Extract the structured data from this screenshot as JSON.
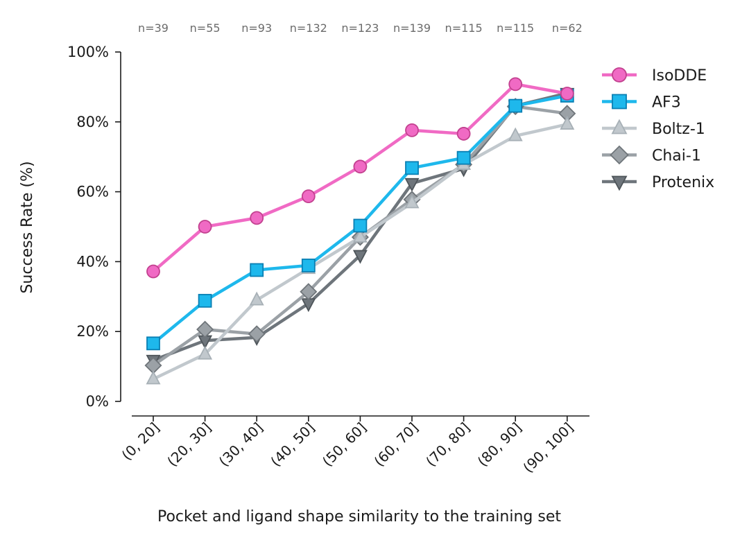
{
  "chart_data": {
    "type": "line",
    "title": "",
    "xlabel": "Pocket and ligand shape similarity to the training set",
    "ylabel": "Success Rate (%)",
    "categories": [
      "(0, 20]",
      "(20, 30]",
      "(30, 40]",
      "(40, 50]",
      "(50, 60]",
      "(60, 70]",
      "(70, 80]",
      "(80, 90]",
      "(90, 100]"
    ],
    "counts": [
      "n=39",
      "n=55",
      "n=93",
      "n=132",
      "n=123",
      "n=139",
      "n=115",
      "n=115",
      "n=62"
    ],
    "ylim": [
      0,
      100
    ],
    "yticks": [
      0,
      20,
      40,
      60,
      80,
      100
    ],
    "ytick_labels": [
      "0%",
      "20%",
      "40%",
      "60%",
      "80%",
      "100%"
    ],
    "grid": false,
    "legend_position": "right",
    "series": [
      {
        "name": "IsoDDE",
        "marker": "circle",
        "color": "#f06ac4",
        "edge": "#c2418f",
        "values": [
          37.2,
          50.0,
          52.5,
          58.7,
          67.2,
          77.6,
          76.6,
          90.8,
          88.1
        ]
      },
      {
        "name": "AF3",
        "marker": "square",
        "color": "#1eb8ec",
        "edge": "#0a7fb3",
        "values": [
          16.6,
          28.8,
          37.6,
          38.9,
          50.3,
          66.8,
          69.7,
          84.6,
          87.5
        ]
      },
      {
        "name": "Boltz-1",
        "marker": "triangle-up",
        "color": "#c1c8cd",
        "edge": "#a7b0b6",
        "values": [
          6.4,
          13.5,
          29.0,
          38.0,
          47.0,
          56.8,
          67.8,
          76.0,
          79.3
        ]
      },
      {
        "name": "Chai-1",
        "marker": "diamond",
        "color": "#9ba1a6",
        "edge": "#6f757a",
        "values": [
          10.3,
          20.6,
          19.3,
          31.4,
          47.0,
          57.8,
          67.8,
          84.4,
          82.4
        ]
      },
      {
        "name": "Protenix",
        "marker": "triangle-down",
        "color": "#6e757b",
        "edge": "#4e555a",
        "values": [
          11.8,
          17.4,
          18.3,
          28.0,
          41.8,
          62.4,
          66.6,
          84.6,
          88.2
        ]
      }
    ]
  }
}
